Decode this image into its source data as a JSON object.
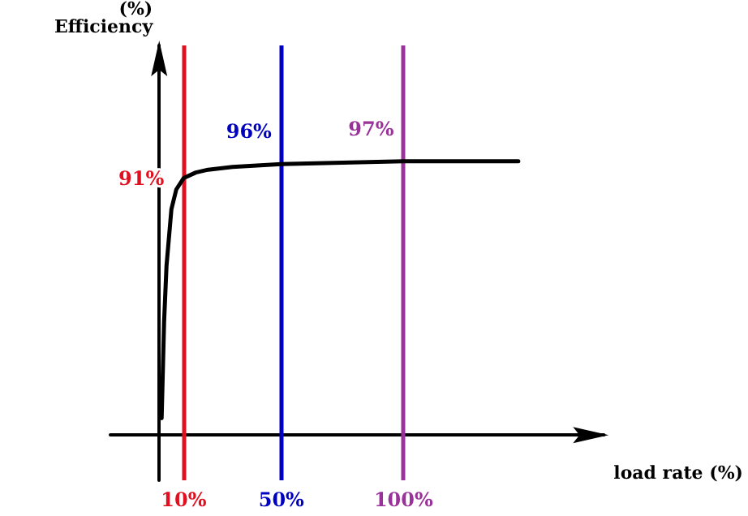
{
  "chart_data": {
    "type": "line",
    "xlabel": "load rate (%)",
    "ylabel": "(%)\nEfficiency",
    "xlim": [
      -20,
      182
    ],
    "ylim": [
      -16,
      138
    ],
    "xticks": [
      {
        "value": 10,
        "label": "10%"
      },
      {
        "value": 50,
        "label": "50%"
      },
      {
        "value": 100,
        "label": "100%"
      }
    ],
    "tick_labels": "x",
    "grid": false,
    "marker": "none",
    "line_style": "solid",
    "series": [
      {
        "color": "#000000",
        "x": [
          1,
          2,
          3,
          5,
          7,
          10,
          15,
          20,
          30,
          50,
          75,
          100,
          147
        ],
        "values": [
          6,
          40,
          60,
          80,
          87,
          91,
          93,
          94,
          95,
          96,
          96.5,
          97,
          97
        ],
        "value_labels": [
          null,
          null,
          null,
          null,
          null,
          "91%",
          null,
          null,
          null,
          "96%",
          null,
          "97%",
          null
        ]
      }
    ],
    "ref_lines": [
      {
        "axis": "x",
        "value": 10,
        "color": "#e01020"
      },
      {
        "axis": "x",
        "value": 50,
        "color": "#0000c0"
      },
      {
        "axis": "x",
        "value": 100,
        "color": "#993399"
      }
    ]
  }
}
